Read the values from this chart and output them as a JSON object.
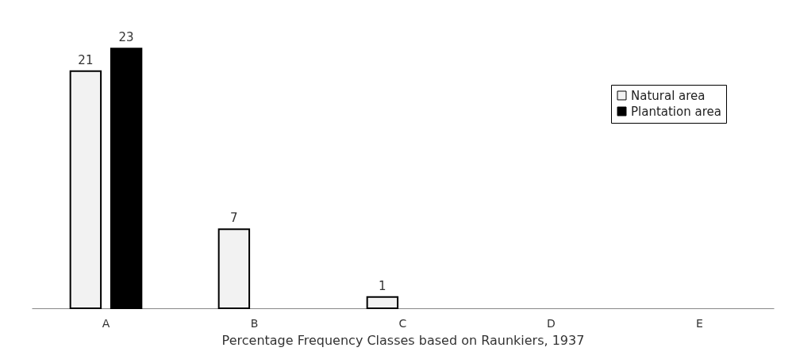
{
  "chart_data": {
    "type": "bar",
    "xlabel": "Percentage Frequency Classes based on Raunkiers, 1937",
    "categories": [
      "A",
      "B",
      "C",
      "D",
      "E"
    ],
    "series": [
      {
        "name": "Natural area",
        "color": "#f2f2f2",
        "values": [
          21,
          7,
          1,
          null,
          null
        ]
      },
      {
        "name": "Plantation area",
        "color": "#000000",
        "values": [
          23,
          null,
          null,
          null,
          null
        ]
      }
    ],
    "tick_labels": "x",
    "data_labels": true,
    "legend": "top right",
    "grid": false
  }
}
